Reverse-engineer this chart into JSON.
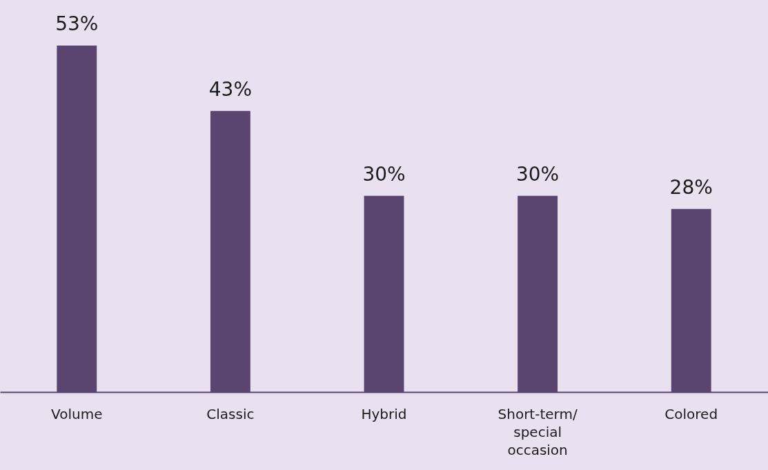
{
  "chart_data": {
    "type": "bar",
    "categories": [
      "Volume",
      "Classic",
      "Hybrid",
      "Short-term/ special occasion",
      "Colored"
    ],
    "values": [
      53,
      43,
      30,
      30,
      28
    ],
    "value_labels": [
      "53%",
      "43%",
      "30%",
      "30%",
      "28%"
    ],
    "color": "#5a4570",
    "grid": false
  }
}
